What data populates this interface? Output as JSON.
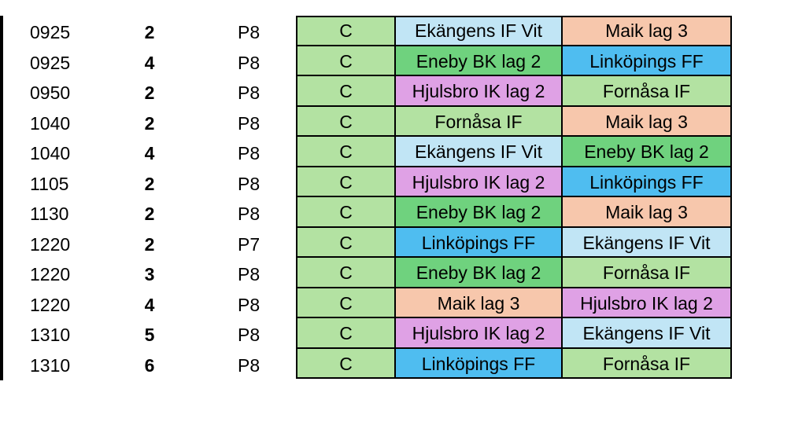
{
  "colors": {
    "group": "#b3e2a2",
    "Ekängens IF Vit": "#c1e5f5",
    "Maik lag 3": "#f7c7ac",
    "Eneby BK lag 2": "#6fd27e",
    "Linköpings FF": "#4fbdf0",
    "Hjulsbro IK lag 2": "#dfa1e5",
    "Fornåsa IF": "#b3e2a2"
  },
  "rows": [
    {
      "time": "0925",
      "field": "2",
      "cls": "P8",
      "group": "C",
      "home": "Ekängens IF Vit",
      "away": "Maik lag 3"
    },
    {
      "time": "0925",
      "field": "4",
      "cls": "P8",
      "group": "C",
      "home": "Eneby BK lag 2",
      "away": "Linköpings FF"
    },
    {
      "time": "0950",
      "field": "2",
      "cls": "P8",
      "group": "C",
      "home": "Hjulsbro IK lag 2",
      "away": "Fornåsa IF"
    },
    {
      "time": "1040",
      "field": "2",
      "cls": "P8",
      "group": "C",
      "home": "Fornåsa IF",
      "away": "Maik lag 3"
    },
    {
      "time": "1040",
      "field": "4",
      "cls": "P8",
      "group": "C",
      "home": "Ekängens IF Vit",
      "away": "Eneby BK lag 2"
    },
    {
      "time": "1105",
      "field": "2",
      "cls": "P8",
      "group": "C",
      "home": "Hjulsbro IK lag 2",
      "away": "Linköpings FF"
    },
    {
      "time": "1130",
      "field": "2",
      "cls": "P8",
      "group": "C",
      "home": "Eneby BK lag 2",
      "away": "Maik lag 3"
    },
    {
      "time": "1220",
      "field": "2",
      "cls": "P7",
      "group": "C",
      "home": "Linköpings FF",
      "away": "Ekängens IF Vit"
    },
    {
      "time": "1220",
      "field": "3",
      "cls": "P8",
      "group": "C",
      "home": "Eneby BK lag 2",
      "away": "Fornåsa IF"
    },
    {
      "time": "1220",
      "field": "4",
      "cls": "P8",
      "group": "C",
      "home": "Maik lag 3",
      "away": "Hjulsbro IK lag 2"
    },
    {
      "time": "1310",
      "field": "5",
      "cls": "P8",
      "group": "C",
      "home": "Hjulsbro IK lag 2",
      "away": "Ekängens IF Vit"
    },
    {
      "time": "1310",
      "field": "6",
      "cls": "P8",
      "group": "C",
      "home": "Linköpings FF",
      "away": "Fornåsa IF"
    }
  ]
}
